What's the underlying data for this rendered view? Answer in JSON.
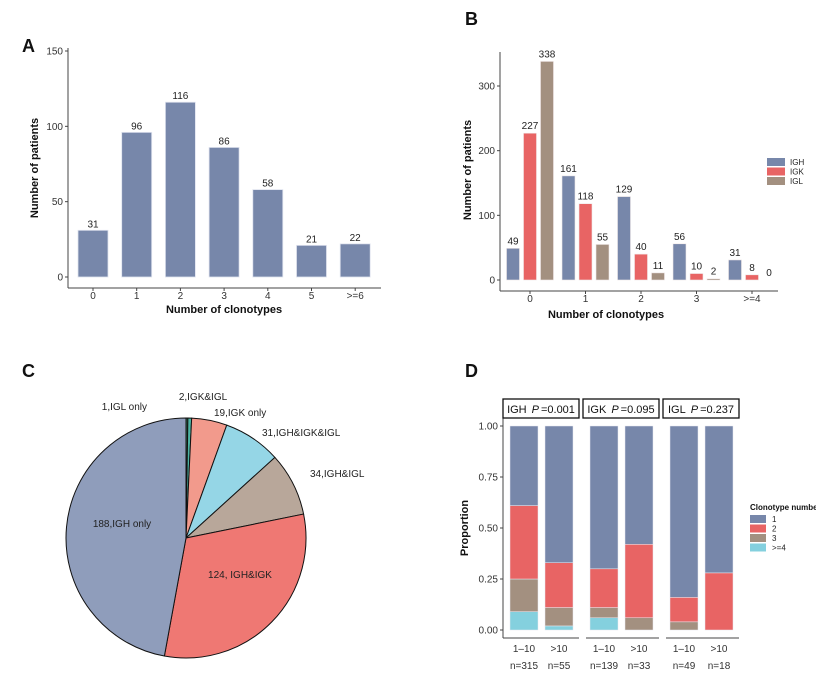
{
  "chart_data": [
    {
      "panel": "A",
      "type": "bar",
      "categories": [
        "0",
        "1",
        "2",
        "3",
        "4",
        "5",
        ">=6"
      ],
      "values": [
        31,
        96,
        116,
        86,
        58,
        21,
        22
      ],
      "xlabel": "Number of clonotypes",
      "ylabel": "Number of patients",
      "ylim": [
        0,
        150
      ],
      "yticks": [
        0,
        50,
        100,
        150
      ],
      "color": "#7787aa",
      "grid": false
    },
    {
      "panel": "B",
      "type": "bar",
      "categories": [
        "0",
        "1",
        "2",
        "3",
        ">=4"
      ],
      "series": [
        {
          "name": "IGH",
          "values": [
            49,
            161,
            129,
            56,
            31
          ],
          "color": "#7787aa"
        },
        {
          "name": "IGK",
          "values": [
            227,
            118,
            40,
            10,
            8
          ],
          "color": "#e86464"
        },
        {
          "name": "IGL",
          "values": [
            338,
            55,
            11,
            2,
            0
          ],
          "color": "#a39080"
        }
      ],
      "xlabel": "Number of clonotypes",
      "ylabel": "Number of patients",
      "ylim": [
        0,
        350
      ],
      "yticks": [
        0,
        100,
        200,
        300
      ],
      "legend": "right",
      "grid": false
    },
    {
      "panel": "C",
      "type": "pie",
      "slices": [
        {
          "label": "1,IGL only",
          "value": 1,
          "color": "#2e6b4f"
        },
        {
          "label": "2,IGK&IGL",
          "value": 2,
          "color": "#4bb3a2"
        },
        {
          "label": "19,IGK only",
          "value": 19,
          "color": "#f29a8c"
        },
        {
          "label": "31,IGH&IGK&IGL",
          "value": 31,
          "color": "#95d6e6"
        },
        {
          "label": "34,IGH&IGL",
          "value": 34,
          "color": "#b8a79a"
        },
        {
          "label": "124, IGH&IGK",
          "value": 124,
          "color": "#ef7873"
        },
        {
          "label": "188,IGH only",
          "value": 188,
          "color": "#8f9dbb"
        }
      ]
    },
    {
      "panel": "D",
      "type": "bar",
      "stacked": true,
      "ylabel": "Proportion",
      "ylim": [
        0,
        1
      ],
      "yticks": [
        "0.00",
        "0.25",
        "0.50",
        "0.75",
        "1.00"
      ],
      "legend_title": "Clonotype number",
      "legend": "right",
      "series": [
        {
          "name": "1",
          "color": "#7787aa"
        },
        {
          "name": "2",
          "color": "#e86464"
        },
        {
          "name": "3",
          "color": "#a39080"
        },
        {
          "name": ">=4",
          "color": "#84d0de"
        }
      ],
      "facets": [
        {
          "gene": "IGH",
          "p_label": "P",
          "p_value": "=0.001",
          "bars": [
            {
              "x": "1–10",
              "n": "n=315",
              "values": [
                0.39,
                0.36,
                0.16,
                0.09
              ]
            },
            {
              "x": ">10",
              "n": "n=55",
              "values": [
                0.67,
                0.22,
                0.09,
                0.02
              ]
            }
          ]
        },
        {
          "gene": "IGK",
          "p_label": "P",
          "p_value": "=0.095",
          "bars": [
            {
              "x": "1–10",
              "n": "n=139",
              "values": [
                0.7,
                0.19,
                0.05,
                0.06
              ]
            },
            {
              "x": ">10",
              "n": "n=33",
              "values": [
                0.58,
                0.36,
                0.06,
                0
              ]
            }
          ]
        },
        {
          "gene": "IGL",
          "p_label": "P",
          "p_value": "=0.237",
          "bars": [
            {
              "x": "1–10",
              "n": "n=49",
              "values": [
                0.84,
                0.12,
                0.04,
                0
              ]
            },
            {
              "x": ">10",
              "n": "n=18",
              "values": [
                0.72,
                0.28,
                0,
                0
              ]
            }
          ]
        }
      ]
    }
  ]
}
